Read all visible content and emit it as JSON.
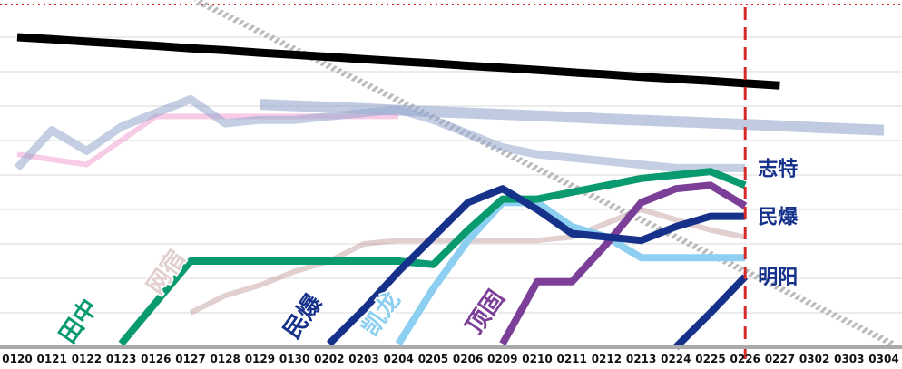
{
  "chart_data": {
    "type": "line",
    "categories": [
      "0120",
      "0121",
      "0122",
      "0123",
      "0126",
      "0127",
      "0128",
      "0129",
      "0130",
      "0202",
      "0203",
      "0204",
      "0205",
      "0206",
      "0209",
      "0210",
      "0211",
      "0212",
      "0213",
      "0224",
      "0225",
      "0226",
      "0227",
      "0302",
      "0303",
      "0304"
    ],
    "ylim": [
      0,
      10
    ],
    "yticks": [
      1,
      2,
      3,
      4,
      5,
      6,
      7,
      8,
      9
    ],
    "grid": true,
    "marker_index": 21,
    "marker_color": "#d42a2a",
    "category_label_colors": [
      {
        "index": 24,
        "color": "#cc2222"
      }
    ],
    "series": [
      {
        "color": "rgba(240,140,200,0.45)",
        "values": [
          5.6,
          5.45,
          5.3,
          6.0,
          6.7,
          6.7,
          6.7,
          6.7,
          6.7,
          6.7,
          6.7,
          6.7,
          null,
          null,
          null,
          null,
          null,
          null,
          null,
          null,
          null,
          null,
          null,
          null,
          null,
          null
        ]
      },
      {
        "name": "网宿",
        "color": "rgba(190,150,150,0.45)",
        "values": [
          null,
          null,
          null,
          null,
          null,
          1.0,
          1.5,
          1.8,
          2.2,
          2.5,
          3.0,
          3.1,
          3.1,
          3.1,
          3.1,
          3.1,
          3.2,
          3.6,
          4.0,
          3.7,
          3.4,
          3.2,
          null,
          null,
          null,
          null
        ]
      },
      {
        "color": "rgba(150,168,205,0.6)",
        "values": [
          null,
          null,
          null,
          null,
          null,
          null,
          null,
          7.05,
          7.01,
          6.97,
          6.93,
          6.88,
          6.84,
          6.8,
          6.76,
          6.72,
          6.68,
          6.63,
          6.59,
          6.55,
          6.51,
          6.47,
          6.43,
          6.38,
          6.34,
          6.3
        ]
      },
      {
        "name": "志特",
        "color": "rgba(150,168,205,0.55)",
        "values": [
          5.2,
          6.3,
          5.7,
          6.4,
          6.8,
          7.2,
          6.5,
          6.6,
          6.6,
          6.7,
          6.8,
          6.9,
          6.6,
          6.2,
          5.8,
          5.6,
          5.5,
          5.4,
          5.3,
          5.2,
          5.2,
          5.2,
          null,
          null,
          null,
          null
        ]
      },
      {
        "color": "#000000",
        "values": [
          9.0,
          8.94,
          8.87,
          8.81,
          8.75,
          8.68,
          8.62,
          8.55,
          8.49,
          8.43,
          8.36,
          8.3,
          8.24,
          8.17,
          8.11,
          8.05,
          7.98,
          7.92,
          7.85,
          7.79,
          7.73,
          7.66,
          7.6,
          null,
          null,
          null
        ]
      },
      {
        "name": "凯龙",
        "color": "#8ccff0",
        "values": [
          null,
          null,
          null,
          null,
          null,
          null,
          null,
          null,
          null,
          null,
          null,
          0.1,
          1.7,
          3.1,
          4.2,
          4.2,
          3.5,
          3.2,
          2.6,
          2.6,
          2.6,
          2.6,
          null,
          null,
          null,
          null
        ]
      },
      {
        "name": "顶固",
        "color": "#7b3f98",
        "values": [
          null,
          null,
          null,
          null,
          null,
          null,
          null,
          null,
          null,
          null,
          null,
          null,
          null,
          null,
          0.1,
          1.9,
          1.9,
          3.0,
          4.2,
          4.6,
          4.7,
          4.1,
          null,
          null,
          null,
          null
        ]
      },
      {
        "name": "田中",
        "color": "#0a9a70",
        "values": [
          null,
          null,
          null,
          0.1,
          1.3,
          2.5,
          2.5,
          2.5,
          2.5,
          2.5,
          2.5,
          2.5,
          2.4,
          3.4,
          4.3,
          4.3,
          4.5,
          4.7,
          4.9,
          5.0,
          5.1,
          4.7,
          null,
          null,
          null,
          null
        ]
      },
      {
        "name": "民爆",
        "color": "#15318a",
        "values": [
          null,
          null,
          null,
          null,
          null,
          null,
          null,
          null,
          null,
          0.1,
          1.1,
          2.2,
          3.2,
          4.2,
          4.6,
          4.0,
          3.3,
          3.2,
          3.1,
          3.5,
          3.8,
          3.8,
          null,
          null,
          null,
          null
        ]
      },
      {
        "name": "明阳",
        "color": "#15318a",
        "values": [
          null,
          null,
          null,
          null,
          null,
          null,
          null,
          null,
          null,
          null,
          null,
          null,
          null,
          null,
          null,
          null,
          null,
          null,
          null,
          0,
          1.0,
          2.05,
          null,
          null,
          null,
          null
        ]
      }
    ]
  }
}
